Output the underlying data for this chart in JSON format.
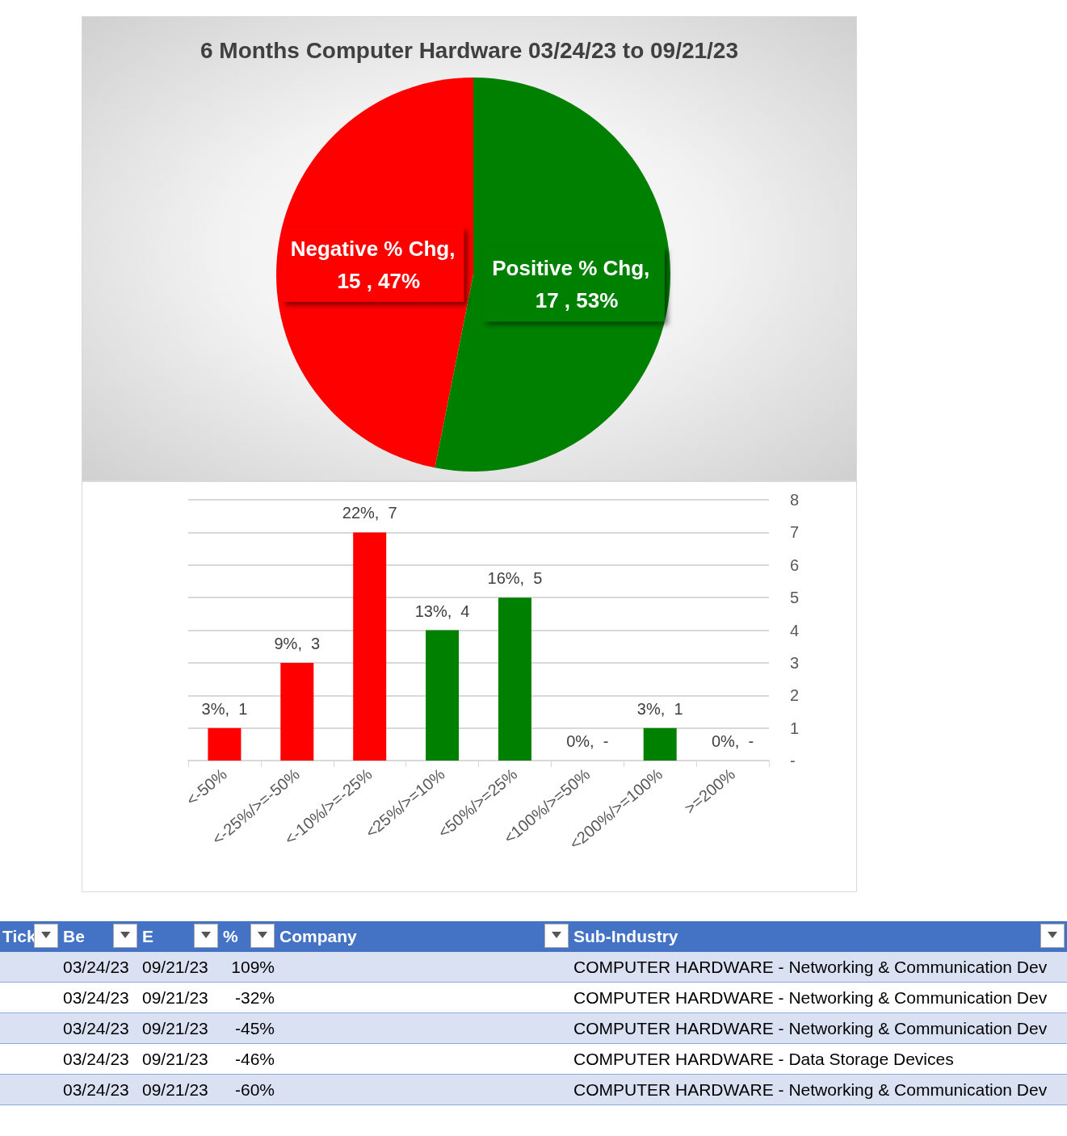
{
  "chart_data": [
    {
      "type": "pie",
      "title": "6 Months Computer Hardware 03/24/23 to 09/21/23",
      "categories": [
        "Negative % Chg",
        "Positive % Chg"
      ],
      "values": [
        15,
        17
      ],
      "colors": [
        "#ff0000",
        "#008000"
      ],
      "value_labels": [
        ",  15 , 47%",
        ",  17 , 53%"
      ],
      "legend": false
    },
    {
      "type": "bar",
      "categories": [
        "<-50%",
        "<-25%/>=-50%",
        "<-10%/>=-25%",
        "<25%/>=10%",
        "<50%/>=25%",
        "<100%/>=50%",
        "<200%/>=100%",
        ">=200%"
      ],
      "values": [
        1,
        3,
        7,
        4,
        5,
        0,
        1,
        0
      ],
      "colors": [
        "#ff0000",
        "#ff0000",
        "#ff0000",
        "#008000",
        "#008000",
        "#008000",
        "#008000",
        "#008000"
      ],
      "value_labels": [
        "3%,  1",
        "9%,  3",
        "22%,  7",
        "13%,  4",
        "16%,  5",
        "0%,  -",
        "3%,  1",
        "0%,  -"
      ],
      "ylim": [
        0,
        8
      ],
      "yticks": [
        {
          "value": 0,
          "label": "-"
        },
        1,
        2,
        3,
        4,
        5,
        6,
        7,
        8
      ],
      "grid": "y",
      "legend": false
    },
    {
      "type": "other",
      "categories": [
        "Tick",
        "Be",
        "E",
        "%",
        "Company",
        "Sub-Industry"
      ],
      "cell_labels": [
        [
          null,
          "03/24/23",
          "09/21/23",
          "109%",
          null,
          "COMPUTER HARDWARE - Networking & Communication Dev"
        ],
        [
          null,
          "03/24/23",
          "09/21/23",
          "-32%",
          null,
          "COMPUTER HARDWARE - Networking & Communication Dev"
        ],
        [
          null,
          "03/24/23",
          "09/21/23",
          "-45%",
          null,
          "COMPUTER HARDWARE - Networking & Communication Dev"
        ],
        [
          null,
          "03/24/23",
          "09/21/23",
          "-46%",
          null,
          "COMPUTER HARDWARE - Data Storage Devices"
        ],
        [
          null,
          "03/24/23",
          "09/21/23",
          "-60%",
          null,
          "COMPUTER HARDWARE - Networking & Communication Dev"
        ]
      ]
    }
  ]
}
